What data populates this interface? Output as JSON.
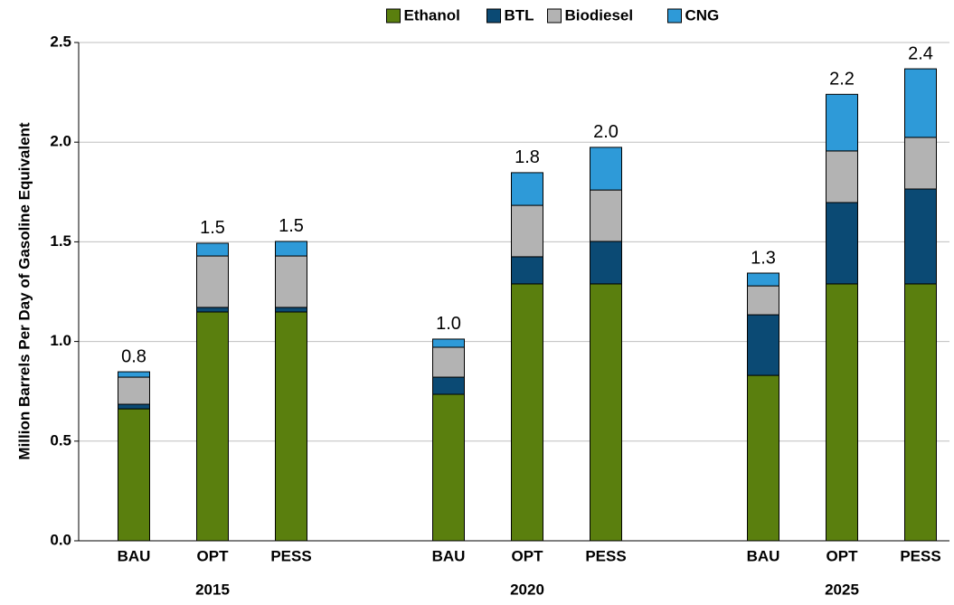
{
  "chart_data": {
    "type": "stacked_bar",
    "y_label": "Million Barrels Per Day of Gasoline Equivalent",
    "groups": [
      {
        "name": "2015",
        "categories": [
          "BAU",
          "OPT",
          "PESS"
        ]
      },
      {
        "name": "2020",
        "categories": [
          "BAU",
          "OPT",
          "PESS"
        ]
      },
      {
        "name": "2025",
        "categories": [
          "BAU",
          "OPT",
          "PESS"
        ]
      }
    ],
    "series": [
      {
        "name": "Ethanol",
        "color": "#5a7f0e",
        "values": [
          0.662,
          1.148,
          1.148,
          0.735,
          1.289,
          1.289,
          0.83,
          1.289,
          1.289
        ]
      },
      {
        "name": "BTL",
        "color": "#0b4a74",
        "values": [
          0.023,
          0.023,
          0.023,
          0.086,
          0.136,
          0.213,
          0.304,
          0.408,
          0.476
        ]
      },
      {
        "name": "Biodiesel",
        "color": "#b3b3b3",
        "values": [
          0.136,
          0.258,
          0.258,
          0.15,
          0.258,
          0.258,
          0.145,
          0.259,
          0.259
        ]
      },
      {
        "name": "CNG",
        "color": "#2e9ad8",
        "values": [
          0.027,
          0.064,
          0.073,
          0.041,
          0.164,
          0.214,
          0.064,
          0.284,
          0.344
        ]
      }
    ],
    "totals": {
      "values": [
        0.848,
        1.493,
        1.502,
        1.012,
        1.847,
        1.974,
        1.343,
        2.24,
        2.368
      ],
      "value_labels": [
        "0.8",
        "1.5",
        "1.5",
        "1.0",
        "1.8",
        "2.0",
        "1.3",
        "2.2",
        "2.4"
      ]
    },
    "ylim": [
      0,
      2.5
    ],
    "yticks": [
      {
        "value": 0,
        "label": "0.0"
      },
      0.5,
      {
        "value": 1,
        "label": "1.0"
      },
      1.5,
      {
        "value": 2,
        "label": "2.0"
      },
      2.5
    ],
    "grid": true,
    "legend": "top"
  }
}
